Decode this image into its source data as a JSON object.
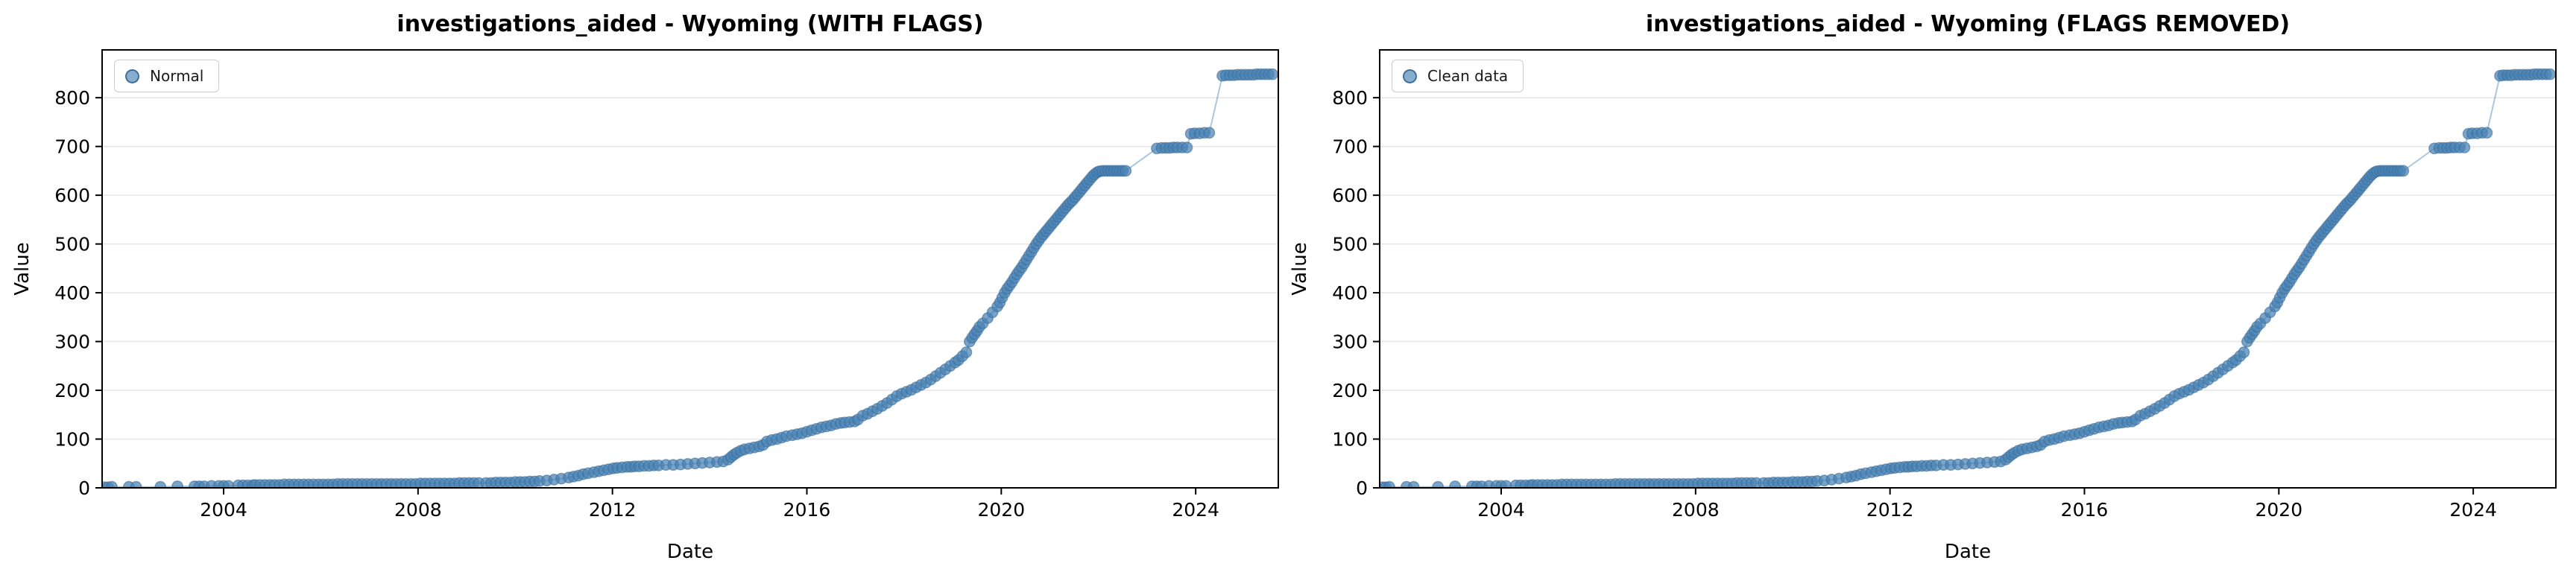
{
  "figure": {
    "background": "#ffffff",
    "n_subplots": 2
  },
  "colors": {
    "marker_fill": "#4682B4",
    "marker_edge": "#3a6795",
    "line": "#4682B4",
    "grid": "#e7e7e7",
    "spine": "#000000",
    "text": "#000000",
    "legend_border": "#cccccc"
  },
  "chart_data": [
    {
      "type": "scatter",
      "title": "investigations_aided - Wyoming (WITH FLAGS)",
      "legend": "Normal",
      "legend_position": "upper-left",
      "xlabel": "Date",
      "ylabel": "Value",
      "xlim": [
        2001.5,
        2025.7
      ],
      "ylim": [
        0,
        898
      ],
      "xticks": [
        2004,
        2008,
        2012,
        2016,
        2020,
        2024
      ],
      "yticks": [
        0,
        100,
        200,
        300,
        400,
        500,
        600,
        700,
        800
      ],
      "grid": "horizontal",
      "points": [
        [
          2001.55,
          1
        ],
        [
          2001.62,
          1
        ],
        [
          2001.7,
          2
        ],
        [
          2002.05,
          2
        ],
        [
          2002.2,
          2
        ],
        [
          2002.7,
          2
        ],
        [
          2003.05,
          3
        ],
        [
          2003.4,
          3
        ],
        [
          2003.5,
          3
        ],
        [
          2003.6,
          3
        ],
        [
          2003.75,
          4
        ],
        [
          2003.9,
          4
        ],
        [
          2004.0,
          4
        ],
        [
          2004.1,
          4
        ],
        [
          2004.3,
          5
        ],
        [
          2004.4,
          5
        ],
        [
          2004.5,
          5
        ],
        [
          2004.6,
          5
        ],
        [
          2004.65,
          6
        ],
        [
          2004.75,
          6
        ],
        [
          2004.85,
          6
        ],
        [
          2004.95,
          6
        ],
        [
          2005.05,
          6
        ],
        [
          2005.15,
          6
        ],
        [
          2005.25,
          7
        ],
        [
          2005.35,
          7
        ],
        [
          2005.45,
          7
        ],
        [
          2005.55,
          7
        ],
        [
          2005.65,
          7
        ],
        [
          2005.75,
          7
        ],
        [
          2005.85,
          7
        ],
        [
          2005.95,
          7
        ],
        [
          2006.05,
          7
        ],
        [
          2006.15,
          7
        ],
        [
          2006.25,
          7
        ],
        [
          2006.35,
          8
        ],
        [
          2006.45,
          8
        ],
        [
          2006.55,
          8
        ],
        [
          2006.65,
          8
        ],
        [
          2006.75,
          8
        ],
        [
          2006.85,
          8
        ],
        [
          2006.95,
          8
        ],
        [
          2007.05,
          8
        ],
        [
          2007.15,
          8
        ],
        [
          2007.25,
          8
        ],
        [
          2007.35,
          8
        ],
        [
          2007.45,
          8
        ],
        [
          2007.55,
          8
        ],
        [
          2007.65,
          8
        ],
        [
          2007.75,
          8
        ],
        [
          2007.85,
          8
        ],
        [
          2007.95,
          8
        ],
        [
          2008.05,
          9
        ],
        [
          2008.15,
          9
        ],
        [
          2008.25,
          9
        ],
        [
          2008.35,
          9
        ],
        [
          2008.45,
          9
        ],
        [
          2008.55,
          9
        ],
        [
          2008.65,
          9
        ],
        [
          2008.75,
          9
        ],
        [
          2008.85,
          10
        ],
        [
          2008.95,
          10
        ],
        [
          2009.05,
          10
        ],
        [
          2009.15,
          10
        ],
        [
          2009.25,
          10
        ],
        [
          2009.4,
          10
        ],
        [
          2009.5,
          10
        ],
        [
          2009.6,
          11
        ],
        [
          2009.7,
          11
        ],
        [
          2009.8,
          11
        ],
        [
          2009.9,
          11
        ],
        [
          2010.0,
          12
        ],
        [
          2010.1,
          12
        ],
        [
          2010.2,
          12
        ],
        [
          2010.3,
          13
        ],
        [
          2010.4,
          13
        ],
        [
          2010.5,
          14
        ],
        [
          2010.65,
          15
        ],
        [
          2010.8,
          17
        ],
        [
          2010.95,
          19
        ],
        [
          2011.1,
          21
        ],
        [
          2011.2,
          23
        ],
        [
          2011.3,
          25
        ],
        [
          2011.4,
          28
        ],
        [
          2011.5,
          30
        ],
        [
          2011.62,
          32
        ],
        [
          2011.72,
          34
        ],
        [
          2011.82,
          36
        ],
        [
          2011.92,
          38
        ],
        [
          2012.02,
          40
        ],
        [
          2012.1,
          41
        ],
        [
          2012.2,
          42
        ],
        [
          2012.3,
          43
        ],
        [
          2012.38,
          43
        ],
        [
          2012.46,
          44
        ],
        [
          2012.55,
          44
        ],
        [
          2012.65,
          45
        ],
        [
          2012.75,
          45
        ],
        [
          2012.85,
          46
        ],
        [
          2012.95,
          46
        ],
        [
          2013.1,
          47
        ],
        [
          2013.25,
          47
        ],
        [
          2013.4,
          48
        ],
        [
          2013.55,
          49
        ],
        [
          2013.7,
          50
        ],
        [
          2013.85,
          51
        ],
        [
          2014.0,
          52
        ],
        [
          2014.15,
          53
        ],
        [
          2014.28,
          54
        ],
        [
          2014.38,
          58
        ],
        [
          2014.44,
          63
        ],
        [
          2014.5,
          68
        ],
        [
          2014.56,
          72
        ],
        [
          2014.64,
          76
        ],
        [
          2014.72,
          79
        ],
        [
          2014.82,
          81
        ],
        [
          2014.92,
          83
        ],
        [
          2015.02,
          85
        ],
        [
          2015.1,
          88
        ],
        [
          2015.18,
          95
        ],
        [
          2015.28,
          98
        ],
        [
          2015.38,
          100
        ],
        [
          2015.48,
          103
        ],
        [
          2015.58,
          106
        ],
        [
          2015.7,
          108
        ],
        [
          2015.8,
          110
        ],
        [
          2015.9,
          112
        ],
        [
          2016.0,
          115
        ],
        [
          2016.1,
          118
        ],
        [
          2016.2,
          121
        ],
        [
          2016.3,
          124
        ],
        [
          2016.4,
          126
        ],
        [
          2016.5,
          128
        ],
        [
          2016.6,
          131
        ],
        [
          2016.7,
          133
        ],
        [
          2016.78,
          134
        ],
        [
          2016.88,
          135
        ],
        [
          2016.98,
          136
        ],
        [
          2017.05,
          140
        ],
        [
          2017.15,
          148
        ],
        [
          2017.25,
          152
        ],
        [
          2017.35,
          157
        ],
        [
          2017.45,
          162
        ],
        [
          2017.55,
          168
        ],
        [
          2017.65,
          174
        ],
        [
          2017.75,
          181
        ],
        [
          2017.85,
          188
        ],
        [
          2017.95,
          193
        ],
        [
          2018.05,
          197
        ],
        [
          2018.15,
          201
        ],
        [
          2018.25,
          206
        ],
        [
          2018.35,
          211
        ],
        [
          2018.45,
          216
        ],
        [
          2018.55,
          222
        ],
        [
          2018.65,
          229
        ],
        [
          2018.75,
          236
        ],
        [
          2018.85,
          243
        ],
        [
          2018.95,
          250
        ],
        [
          2019.05,
          257
        ],
        [
          2019.12,
          262
        ],
        [
          2019.2,
          270
        ],
        [
          2019.28,
          278
        ],
        [
          2019.35,
          300
        ],
        [
          2019.4,
          308
        ],
        [
          2019.45,
          315
        ],
        [
          2019.5,
          322
        ],
        [
          2019.55,
          330
        ],
        [
          2019.62,
          337
        ],
        [
          2019.72,
          348
        ],
        [
          2019.82,
          360
        ],
        [
          2019.92,
          372
        ],
        [
          2019.97,
          380
        ],
        [
          2020.02,
          390
        ],
        [
          2020.07,
          400
        ],
        [
          2020.12,
          408
        ],
        [
          2020.17,
          415
        ],
        [
          2020.22,
          422
        ],
        [
          2020.27,
          430
        ],
        [
          2020.32,
          438
        ],
        [
          2020.37,
          445
        ],
        [
          2020.42,
          452
        ],
        [
          2020.47,
          460
        ],
        [
          2020.52,
          468
        ],
        [
          2020.57,
          476
        ],
        [
          2020.62,
          484
        ],
        [
          2020.67,
          492
        ],
        [
          2020.72,
          500
        ],
        [
          2020.77,
          507
        ],
        [
          2020.82,
          514
        ],
        [
          2020.87,
          520
        ],
        [
          2020.92,
          526
        ],
        [
          2020.97,
          532
        ],
        [
          2021.02,
          538
        ],
        [
          2021.07,
          544
        ],
        [
          2021.12,
          550
        ],
        [
          2021.17,
          556
        ],
        [
          2021.22,
          562
        ],
        [
          2021.27,
          568
        ],
        [
          2021.32,
          574
        ],
        [
          2021.37,
          580
        ],
        [
          2021.42,
          585
        ],
        [
          2021.47,
          590
        ],
        [
          2021.52,
          596
        ],
        [
          2021.57,
          602
        ],
        [
          2021.62,
          608
        ],
        [
          2021.67,
          614
        ],
        [
          2021.72,
          620
        ],
        [
          2021.77,
          626
        ],
        [
          2021.82,
          632
        ],
        [
          2021.87,
          638
        ],
        [
          2021.92,
          643
        ],
        [
          2021.97,
          647
        ],
        [
          2022.02,
          649
        ],
        [
          2022.08,
          650
        ],
        [
          2022.14,
          650
        ],
        [
          2022.2,
          650
        ],
        [
          2022.26,
          650
        ],
        [
          2022.32,
          650
        ],
        [
          2022.38,
          650
        ],
        [
          2022.44,
          650
        ],
        [
          2022.5,
          650
        ],
        [
          2022.56,
          650
        ],
        [
          2023.2,
          696
        ],
        [
          2023.3,
          697
        ],
        [
          2023.38,
          697
        ],
        [
          2023.46,
          697
        ],
        [
          2023.54,
          698
        ],
        [
          2023.62,
          698
        ],
        [
          2023.72,
          698
        ],
        [
          2023.82,
          698
        ],
        [
          2023.9,
          726
        ],
        [
          2023.98,
          727
        ],
        [
          2024.08,
          727
        ],
        [
          2024.18,
          728
        ],
        [
          2024.28,
          728
        ],
        [
          2024.55,
          845
        ],
        [
          2024.62,
          846
        ],
        [
          2024.7,
          846
        ],
        [
          2024.78,
          846
        ],
        [
          2024.86,
          847
        ],
        [
          2024.94,
          847
        ],
        [
          2025.02,
          847
        ],
        [
          2025.1,
          847
        ],
        [
          2025.18,
          847
        ],
        [
          2025.26,
          848
        ],
        [
          2025.34,
          848
        ],
        [
          2025.42,
          848
        ],
        [
          2025.5,
          848
        ],
        [
          2025.58,
          848
        ]
      ]
    },
    {
      "type": "scatter",
      "title": "investigations_aided - Wyoming (FLAGS REMOVED)",
      "legend": "Clean data",
      "legend_position": "upper-left",
      "xlabel": "Date",
      "ylabel": "Value",
      "xlim": [
        2001.5,
        2025.7
      ],
      "ylim": [
        0,
        898
      ],
      "xticks": [
        2004,
        2008,
        2012,
        2016,
        2020,
        2024
      ],
      "yticks": [
        0,
        100,
        200,
        300,
        400,
        500,
        600,
        700,
        800
      ],
      "grid": "horizontal",
      "points_ref": 0
    }
  ]
}
